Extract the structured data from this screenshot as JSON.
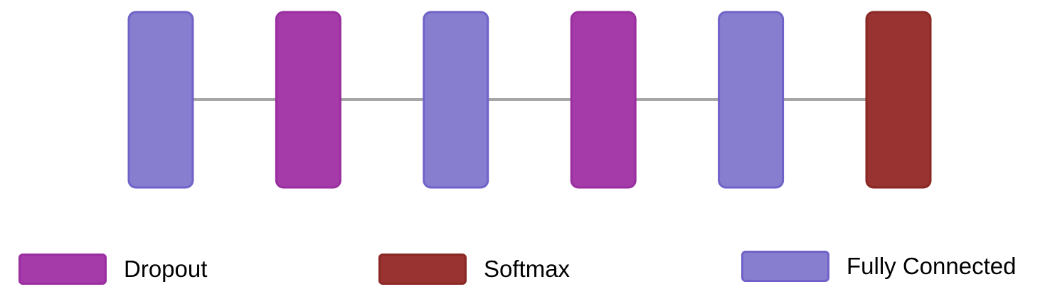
{
  "colors": {
    "fully_connected": "#877ed0",
    "fully_connected_border": "#7062c8",
    "dropout": "#a43ba8",
    "dropout_border": "#9a2ea0",
    "softmax": "#983331",
    "softmax_border": "#8a2826",
    "connector": "#a6a6a6"
  },
  "layers": [
    {
      "type": "fully_connected"
    },
    {
      "type": "dropout"
    },
    {
      "type": "fully_connected"
    },
    {
      "type": "dropout"
    },
    {
      "type": "fully_connected"
    },
    {
      "type": "softmax"
    }
  ],
  "legend": {
    "dropout_label": "Dropout",
    "softmax_label": "Softmax",
    "fully_connected_label": "Fully Connected"
  }
}
